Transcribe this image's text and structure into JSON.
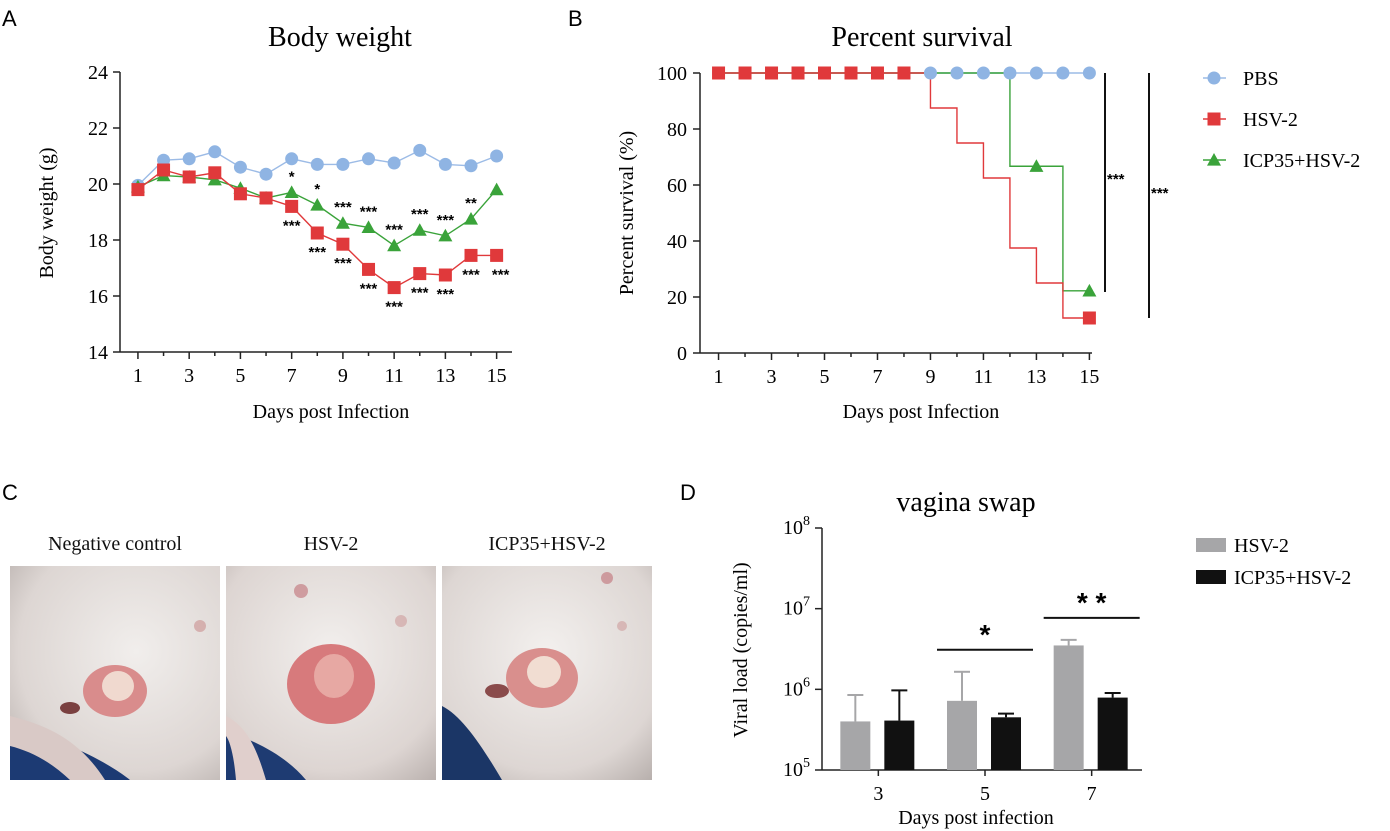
{
  "panel_letters": {
    "a": "A",
    "b": "B",
    "c": "C",
    "d": "D"
  },
  "colors": {
    "pbs": "#8fb4e3",
    "pbs_line": "#9cbbe6",
    "hsv2": "#e0393b",
    "icp35": "#3aa33a",
    "grey_bar": "#a6a6a8",
    "black_bar": "#111111"
  },
  "chart_data": [
    {
      "id": "A",
      "type": "line",
      "title": "Body weight",
      "xlabel": "Days post Infection",
      "ylabel": "Body weight (g)",
      "xlim": [
        0.3,
        15.6
      ],
      "ylim": [
        14,
        24
      ],
      "xticks": [
        1,
        3,
        5,
        7,
        9,
        11,
        13,
        15
      ],
      "yticks": [
        14,
        16,
        18,
        20,
        22,
        24
      ],
      "x": [
        1,
        2,
        3,
        4,
        5,
        6,
        7,
        8,
        9,
        10,
        11,
        12,
        13,
        14,
        15
      ],
      "series": [
        {
          "name": "PBS",
          "marker": "circle",
          "values": [
            19.95,
            20.85,
            20.9,
            21.15,
            20.6,
            20.35,
            20.9,
            20.7,
            20.7,
            20.9,
            20.75,
            21.2,
            20.7,
            20.65,
            21.0
          ]
        },
        {
          "name": "ICP35+HSV-2",
          "marker": "triangle",
          "values": [
            19.9,
            20.3,
            20.25,
            20.15,
            19.85,
            19.5,
            19.7,
            19.25,
            18.6,
            18.45,
            17.8,
            18.35,
            18.15,
            18.75,
            19.8
          ]
        },
        {
          "name": "HSV-2",
          "marker": "square",
          "values": [
            19.8,
            20.5,
            20.25,
            20.4,
            19.65,
            19.5,
            19.2,
            18.25,
            17.85,
            16.95,
            16.3,
            16.8,
            16.75,
            17.45,
            17.45
          ]
        }
      ],
      "annotations_upper": [
        {
          "x": 7,
          "text": "*"
        },
        {
          "x": 8,
          "text": "*"
        },
        {
          "x": 9,
          "text": "***"
        },
        {
          "x": 10,
          "text": "***"
        },
        {
          "x": 11,
          "text": "***"
        },
        {
          "x": 12,
          "text": "***"
        },
        {
          "x": 13,
          "text": "***"
        },
        {
          "x": 14,
          "text": "**"
        }
      ],
      "annotations_lower": [
        {
          "x": 7,
          "text": "***"
        },
        {
          "x": 8,
          "text": "***"
        },
        {
          "x": 9,
          "text": "***"
        },
        {
          "x": 10,
          "text": "***"
        },
        {
          "x": 11,
          "text": "***"
        },
        {
          "x": 12,
          "text": "***"
        },
        {
          "x": 13,
          "text": "***"
        },
        {
          "x": 14,
          "text": "***"
        },
        {
          "x": 15,
          "text": "***"
        }
      ]
    },
    {
      "id": "B",
      "type": "line",
      "title": "Percent survival",
      "xlabel": "Days post Infection",
      "ylabel": "Percent survival (%)",
      "xlim": [
        0.3,
        15.4
      ],
      "ylim": [
        0,
        100
      ],
      "xticks": [
        1,
        3,
        5,
        7,
        9,
        11,
        13,
        15
      ],
      "yticks": [
        0,
        20,
        40,
        60,
        80,
        100
      ],
      "legend": [
        "PBS",
        "HSV-2",
        "ICP35+HSV-2"
      ],
      "series": [
        {
          "name": "PBS",
          "marker": "circle",
          "steps": [
            [
              1,
              100
            ],
            [
              15,
              100
            ]
          ],
          "marks": [
            [
              1,
              100
            ],
            [
              2,
              100
            ],
            [
              3,
              100
            ],
            [
              4,
              100
            ],
            [
              5,
              100
            ],
            [
              6,
              100
            ],
            [
              7,
              100
            ],
            [
              8,
              100
            ],
            [
              9,
              100
            ],
            [
              10,
              100
            ],
            [
              11,
              100
            ],
            [
              12,
              100
            ],
            [
              13,
              100
            ],
            [
              14,
              100
            ],
            [
              15,
              100
            ]
          ]
        },
        {
          "name": "ICP35+HSV-2",
          "marker": "triangle",
          "steps": [
            [
              1,
              100
            ],
            [
              12,
              100
            ],
            [
              12,
              66.7
            ],
            [
              14,
              66.7
            ],
            [
              14,
              22.2
            ],
            [
              15,
              22.2
            ]
          ],
          "marks": [
            [
              13,
              66.7
            ],
            [
              15,
              22.2
            ]
          ]
        },
        {
          "name": "HSV-2",
          "marker": "square",
          "steps": [
            [
              1,
              100
            ],
            [
              9,
              100
            ],
            [
              9,
              87.5
            ],
            [
              10,
              87.5
            ],
            [
              10,
              75
            ],
            [
              11,
              75
            ],
            [
              11,
              62.5
            ],
            [
              12,
              62.5
            ],
            [
              12,
              37.5
            ],
            [
              13,
              37.5
            ],
            [
              13,
              25
            ],
            [
              14,
              25
            ],
            [
              14,
              12.5
            ],
            [
              15,
              12.5
            ]
          ],
          "marks": [
            [
              1,
              100
            ],
            [
              2,
              100
            ],
            [
              3,
              100
            ],
            [
              4,
              100
            ],
            [
              5,
              100
            ],
            [
              6,
              100
            ],
            [
              7,
              100
            ],
            [
              8,
              100
            ],
            [
              15,
              12.5
            ]
          ]
        }
      ],
      "significance": [
        "***",
        "***"
      ]
    },
    {
      "id": "D",
      "type": "bar",
      "title": "vagina swap",
      "xlabel": "Days post infection",
      "ylabel": "Viral load (copies/ml)",
      "yscale": "log",
      "ylim_exp": [
        5,
        8
      ],
      "ytick_base": "10",
      "yticks_exp": [
        "5",
        "6",
        "7",
        "8"
      ],
      "categories": [
        "3",
        "5",
        "7"
      ],
      "series": [
        {
          "name": "HSV-2",
          "values": [
            400000,
            720000,
            3500000
          ],
          "errors": [
            850000,
            1650000,
            4100000
          ]
        },
        {
          "name": "ICP35+HSV-2",
          "values": [
            410000,
            450000,
            790000
          ],
          "errors": [
            970000,
            500000,
            900000
          ]
        }
      ],
      "significance": [
        {
          "category": "5",
          "text": "*"
        },
        {
          "category": "7",
          "text": "* *"
        }
      ]
    }
  ],
  "photos": [
    {
      "label": "Negative control"
    },
    {
      "label": "HSV-2"
    },
    {
      "label": "ICP35+HSV-2"
    }
  ]
}
